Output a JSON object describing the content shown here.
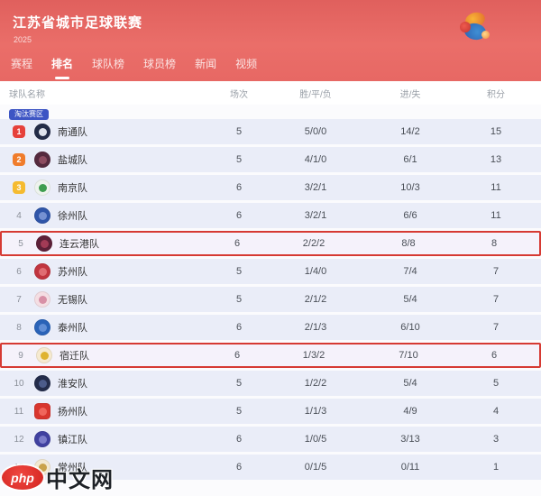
{
  "header": {
    "title": "江苏省城市足球联赛",
    "season": "2025",
    "nav": [
      {
        "label": "赛程",
        "active": false
      },
      {
        "label": "排名",
        "active": true
      },
      {
        "label": "球队榜",
        "active": false
      },
      {
        "label": "球员榜",
        "active": false
      },
      {
        "label": "新闻",
        "active": false
      },
      {
        "label": "视频",
        "active": false
      }
    ]
  },
  "table": {
    "columns": {
      "team": "球队名称",
      "played": "场次",
      "wdl": "胜/平/负",
      "goals": "进/失",
      "points": "积分"
    },
    "stage_badge": "淘汰赛区",
    "rank_colors": {
      "1": "#e6413b",
      "2": "#f07c2b",
      "3": "#f5bb30"
    },
    "rows": [
      {
        "rank": 1,
        "team": "南通队",
        "played": "5",
        "wdl": "5/0/0",
        "goals": "14/2",
        "points": "15",
        "highlighted": false,
        "logo": {
          "bg": "#232c48",
          "accent": "#dfe3ec",
          "shape": "circle"
        }
      },
      {
        "rank": 2,
        "team": "盐城队",
        "played": "5",
        "wdl": "4/1/0",
        "goals": "6/1",
        "points": "13",
        "highlighted": false,
        "logo": {
          "bg": "#552a3e",
          "accent": "#8d4c60",
          "shape": "circle"
        }
      },
      {
        "rank": 3,
        "team": "南京队",
        "played": "6",
        "wdl": "3/2/1",
        "goals": "10/3",
        "points": "11",
        "highlighted": false,
        "logo": {
          "bg": "#eef3ee",
          "accent": "#3f9e4f",
          "shape": "circle"
        }
      },
      {
        "rank": 4,
        "team": "徐州队",
        "played": "6",
        "wdl": "3/2/1",
        "goals": "6/6",
        "points": "11",
        "highlighted": false,
        "logo": {
          "bg": "#2f55a9",
          "accent": "#7591d2",
          "shape": "circle"
        }
      },
      {
        "rank": 5,
        "team": "连云港队",
        "played": "6",
        "wdl": "2/2/2",
        "goals": "8/8",
        "points": "8",
        "highlighted": true,
        "logo": {
          "bg": "#5d2038",
          "accent": "#a23b56",
          "shape": "circle"
        }
      },
      {
        "rank": 6,
        "team": "苏州队",
        "played": "5",
        "wdl": "1/4/0",
        "goals": "7/4",
        "points": "7",
        "highlighted": false,
        "logo": {
          "bg": "#c1353f",
          "accent": "#e06d73",
          "shape": "circle"
        }
      },
      {
        "rank": 7,
        "team": "无锡队",
        "played": "5",
        "wdl": "2/1/2",
        "goals": "5/4",
        "points": "7",
        "highlighted": false,
        "logo": {
          "bg": "#f4dee3",
          "accent": "#d890a6",
          "shape": "circle"
        }
      },
      {
        "rank": 8,
        "team": "泰州队",
        "played": "6",
        "wdl": "2/1/3",
        "goals": "6/10",
        "points": "7",
        "highlighted": false,
        "logo": {
          "bg": "#2a63b8",
          "accent": "#628fd6",
          "shape": "circle"
        }
      },
      {
        "rank": 9,
        "team": "宿迁队",
        "played": "6",
        "wdl": "1/3/2",
        "goals": "7/10",
        "points": "6",
        "highlighted": true,
        "logo": {
          "bg": "#f6ead0",
          "accent": "#dfb330",
          "shape": "circle"
        }
      },
      {
        "rank": 10,
        "team": "淮安队",
        "played": "5",
        "wdl": "1/2/2",
        "goals": "5/4",
        "points": "5",
        "highlighted": false,
        "logo": {
          "bg": "#242d4b",
          "accent": "#4c5c8a",
          "shape": "circle"
        }
      },
      {
        "rank": 11,
        "team": "扬州队",
        "played": "5",
        "wdl": "1/1/3",
        "goals": "4/9",
        "points": "4",
        "highlighted": false,
        "logo": {
          "bg": "#d8362e",
          "accent": "#f0665c",
          "shape": "square"
        }
      },
      {
        "rank": 12,
        "team": "镇江队",
        "played": "6",
        "wdl": "1/0/5",
        "goals": "3/13",
        "points": "3",
        "highlighted": false,
        "logo": {
          "bg": "#4041a0",
          "accent": "#7c7dca",
          "shape": "circle"
        }
      },
      {
        "rank": 13,
        "team": "常州队",
        "played": "6",
        "wdl": "0/1/5",
        "goals": "0/11",
        "points": "1",
        "highlighted": false,
        "logo": {
          "bg": "#f2e8d1",
          "accent": "#c9a24a",
          "shape": "circle"
        }
      }
    ]
  },
  "watermark": {
    "prefix": "php",
    "text": "中文网"
  }
}
